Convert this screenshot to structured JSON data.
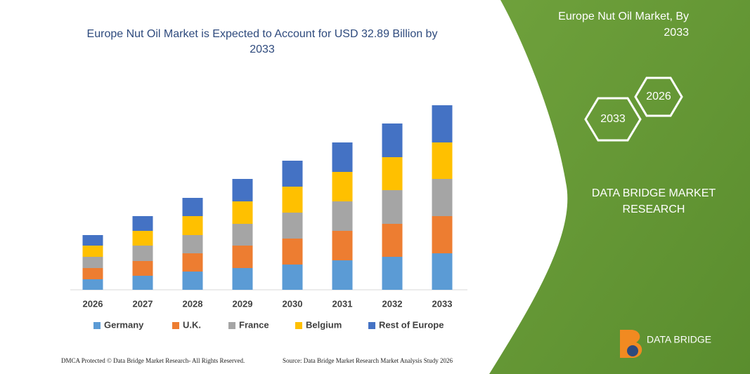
{
  "chart_data": {
    "type": "stacked_bar",
    "title": "Europe Nut Oil Market is Expected to Account for USD 32.89 Billion by 2033",
    "categories": [
      "2026",
      "2027",
      "2028",
      "2029",
      "2030",
      "2031",
      "2032",
      "2033"
    ],
    "series": [
      {
        "name": "Germany",
        "color": "#5b9bd5",
        "values": [
          15,
          20,
          26,
          31,
          36,
          42,
          47,
          52
        ]
      },
      {
        "name": "U.K.",
        "color": "#ed7d31",
        "values": [
          16,
          21,
          26,
          32,
          37,
          42,
          47,
          53
        ]
      },
      {
        "name": "France",
        "color": "#a5a5a5",
        "values": [
          16,
          22,
          26,
          31,
          37,
          42,
          48,
          53
        ]
      },
      {
        "name": "Belgium",
        "color": "#ffc000",
        "values": [
          16,
          21,
          27,
          32,
          37,
          42,
          47,
          52
        ]
      },
      {
        "name": "Rest of Europe",
        "color": "#4472c4",
        "values": [
          15,
          21,
          26,
          32,
          37,
          42,
          48,
          53
        ]
      }
    ],
    "legend": "bottom"
  },
  "panel": {
    "title": "Europe Nut Oil Market, By 2033",
    "hex_large": "2033",
    "hex_small": "2026",
    "brand": "DATA BRIDGE MARKET RESEARCH",
    "logo": "DATA BRIDGE"
  },
  "footer": {
    "left": "DMCA Protected © Data Bridge Market Research- All Rights Reserved.",
    "right": "Source: Data Bridge Market Research Market Analysis Study 2026"
  }
}
